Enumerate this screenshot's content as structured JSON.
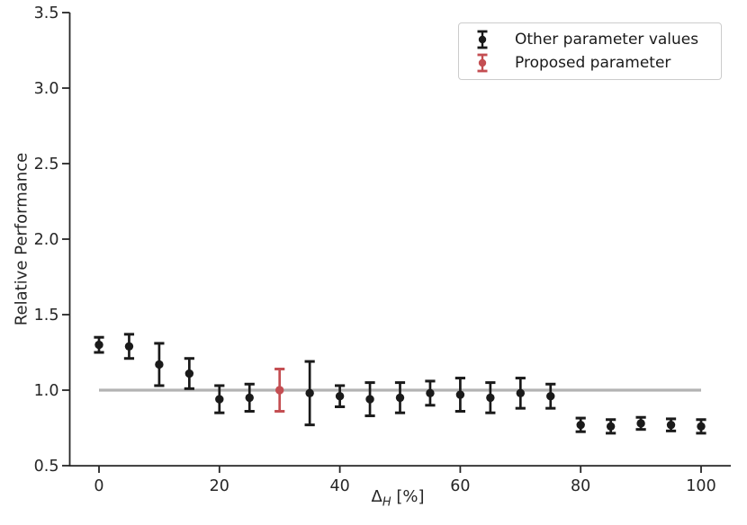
{
  "figure": {
    "background": "#ffffff"
  },
  "chart_data": {
    "type": "scatter",
    "subtype": "errorbar",
    "title": "",
    "xlabel": "Δ_H [%]",
    "xlabel_parts": {
      "symbol": "Δ",
      "subscript": "H",
      "unit": " [%]"
    },
    "ylabel": "Relative Performance",
    "xlim": [
      -8,
      105
    ],
    "ylim": [
      0.5,
      3.5
    ],
    "x_ticks": [
      0,
      20,
      40,
      60,
      80,
      100
    ],
    "y_ticks": [
      0.5,
      1.0,
      1.5,
      2.0,
      2.5,
      3.0,
      3.5
    ],
    "grid": false,
    "legend_position": "upper right",
    "reference_line": {
      "y": 1.0,
      "x_start": 0,
      "x_end": 100,
      "color": "#b3b3b3"
    },
    "series": [
      {
        "name": "Other parameter values",
        "color": "#1a1a1a",
        "x": [
          0,
          5,
          10,
          15,
          20,
          25,
          35,
          40,
          45,
          50,
          55,
          60,
          65,
          70,
          75,
          80,
          85,
          90,
          95,
          100
        ],
        "y": [
          1.3,
          1.29,
          1.17,
          1.11,
          0.94,
          0.95,
          0.98,
          0.96,
          0.94,
          0.95,
          0.98,
          0.97,
          0.95,
          0.98,
          0.96,
          0.77,
          0.76,
          0.78,
          0.77,
          0.76
        ],
        "yerr": [
          0.05,
          0.08,
          0.14,
          0.1,
          0.09,
          0.09,
          0.21,
          0.07,
          0.11,
          0.1,
          0.08,
          0.11,
          0.1,
          0.1,
          0.08,
          0.045,
          0.045,
          0.04,
          0.04,
          0.045
        ]
      },
      {
        "name": "Proposed parameter",
        "color": "#c44e52",
        "x": [
          30
        ],
        "y": [
          1.0
        ],
        "yerr": [
          0.14
        ]
      }
    ]
  },
  "legend": {
    "entries": [
      {
        "label": "Other parameter values",
        "color": "#1a1a1a"
      },
      {
        "label": "Proposed parameter",
        "color": "#c44e52"
      }
    ]
  },
  "style": {
    "spine_color": "#262626",
    "tick_label_color": "#262626",
    "legend_border_color": "#cccccc",
    "reference_line_color": "#b3b3b3"
  }
}
